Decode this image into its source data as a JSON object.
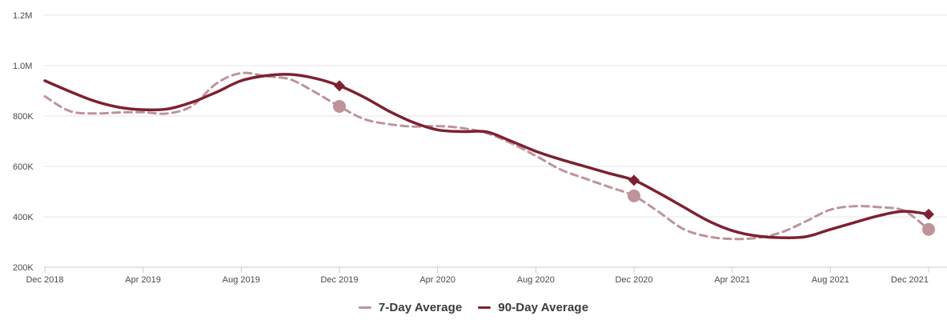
{
  "chart_data": {
    "type": "line",
    "title": "",
    "x_axis": {
      "start": "Dec 2018",
      "end": "Dec 2021",
      "unit": "month",
      "tick_labels": [
        "Dec 2018",
        "Apr 2019",
        "Aug 2019",
        "Dec 2019",
        "Apr 2020",
        "Aug 2020",
        "Dec 2020",
        "Apr 2021",
        "Aug 2021",
        "Dec 2021"
      ],
      "tick_every_n_points": 4
    },
    "y_axis": {
      "min": 200000,
      "max": 1200000,
      "tick_labels_bottom_to_top": [
        "200K",
        "400K",
        "600K",
        "800K",
        "1.0M",
        "1.2M"
      ]
    },
    "grid": true,
    "legend_position": "bottom-center",
    "series": [
      {
        "name": "7-Day Average",
        "style": "dashed",
        "color": "#bf939b",
        "values": [
          878000,
          820000,
          810000,
          814000,
          815000,
          810000,
          840000,
          930000,
          970000,
          958000,
          945000,
          895000,
          838000,
          788000,
          768000,
          758000,
          760000,
          752000,
          732000,
          692000,
          642000,
          588000,
          552000,
          518000,
          483000,
          420000,
          352000,
          322000,
          312000,
          316000,
          338000,
          382000,
          428000,
          442000,
          438000,
          424000,
          350000
        ]
      },
      {
        "name": "90-Day Average",
        "style": "solid",
        "color": "#7d2130",
        "values": [
          940000,
          898000,
          860000,
          835000,
          825000,
          828000,
          855000,
          895000,
          940000,
          960000,
          965000,
          950000,
          920000,
          875000,
          820000,
          775000,
          745000,
          738000,
          737000,
          700000,
          660000,
          628000,
          600000,
          572000,
          545000,
          495000,
          440000,
          385000,
          345000,
          324000,
          317000,
          321000,
          350000,
          378000,
          405000,
          422000,
          410000
        ]
      }
    ],
    "markers": [
      {
        "series": "90-Day Average",
        "x_label": "Dec 2019",
        "index": 12,
        "value": 920000,
        "shape": "diamond"
      },
      {
        "series": "7-Day Average",
        "x_label": "Dec 2019",
        "index": 12,
        "value": 838000,
        "shape": "circle"
      },
      {
        "series": "90-Day Average",
        "x_label": "Dec 2020",
        "index": 24,
        "value": 545000,
        "shape": "diamond"
      },
      {
        "series": "7-Day Average",
        "x_label": "Dec 2020",
        "index": 24,
        "value": 483000,
        "shape": "circle"
      },
      {
        "series": "90-Day Average",
        "x_label": "Dec 2021",
        "index": 36,
        "value": 410000,
        "shape": "diamond"
      },
      {
        "series": "7-Day Average",
        "x_label": "Dec 2021",
        "index": 36,
        "value": 350000,
        "shape": "circle"
      }
    ]
  },
  "colors": {
    "grid_line": "#e4e4e4",
    "axis_line": "#c9ced6",
    "tick_label": "#4a4a4a",
    "legend_text": "#3b3b3b"
  }
}
